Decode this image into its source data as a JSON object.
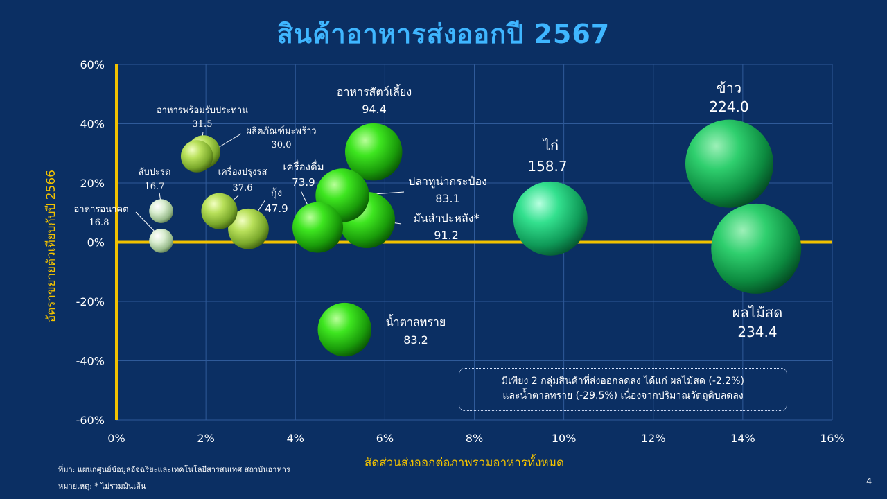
{
  "title": "สินค้าอาหารส่งออกปี 2567",
  "xlabel": "สัดส่วนส่งออกต่อภาพรวมอาหารทั้งหมด",
  "ylabel": "อัตราขยายตัวเทียบกับปี 2566",
  "source": "ที่มา: แผนกศูนย์ข้อมูลอัจฉริยะและเทคโนโลยีสารสนเทศ สถาบันอาหาร",
  "note": "หมายเหตุ: * ไม่รวมมันเส้น",
  "page_number": "4",
  "callout": {
    "line1": "มีเพียง 2 กลุ่มสินค้าที่ส่งออกลดลง ได้แก่ ผลไม้สด (-2.2%)",
    "line2": "และน้ำตาลทราย (-29.5%) เนื่องจากปริมาณวัตถุดิบลดลง"
  },
  "colors": {
    "background": "#0b2f63",
    "title": "#3fb6ff",
    "axis_highlight": "#f2c200",
    "grid": "#2f5a99"
  },
  "chart_data": {
    "type": "bubble",
    "xlim": [
      0,
      16
    ],
    "ylim": [
      -60,
      60
    ],
    "x_ticks": [
      "0%",
      "2%",
      "4%",
      "6%",
      "8%",
      "10%",
      "12%",
      "14%",
      "16%"
    ],
    "y_ticks": [
      "60%",
      "40%",
      "20%",
      "0%",
      "-20%",
      "-40%",
      "-60%"
    ],
    "grid": true,
    "points": [
      {
        "name": "ข้าว",
        "size_label": "224.0",
        "x": 13.7,
        "y": 26.5,
        "size": 224.0,
        "color": "green"
      },
      {
        "name": "ผลไม้สด",
        "size_label": "234.4",
        "x": 14.3,
        "y": -2.2,
        "size": 234.4,
        "color": "green"
      },
      {
        "name": "ไก่",
        "size_label": "158.7",
        "x": 9.7,
        "y": 8.0,
        "size": 158.7,
        "color": "teal"
      },
      {
        "name": "อาหารสัตว์เลี้ยง",
        "size_label": "94.4",
        "x": 5.75,
        "y": 30.5,
        "size": 94.4,
        "color": "lime"
      },
      {
        "name": "ปลาทูน่ากระป๋อง",
        "size_label": "83.1",
        "x": 5.05,
        "y": 15.8,
        "size": 83.1,
        "color": "lime"
      },
      {
        "name": "มันสำปะหลัง*",
        "size_label": "91.2",
        "x": 5.6,
        "y": 7.5,
        "size": 91.2,
        "color": "lime"
      },
      {
        "name": "เครื่องดื่ม",
        "size_label": "73.9",
        "x": 4.5,
        "y": 5.0,
        "size": 73.9,
        "color": "lime"
      },
      {
        "name": "น้ำตาลทราย",
        "size_label": "83.2",
        "x": 5.1,
        "y": -29.5,
        "size": 83.2,
        "color": "lime"
      },
      {
        "name": "กุ้ง",
        "size_label": "47.9",
        "x": 2.95,
        "y": 4.5,
        "size": 47.9,
        "color": "olive"
      },
      {
        "name": "เครื่องปรุงรส",
        "size_label": "37.6",
        "x": 2.3,
        "y": 10.5,
        "size": 37.6,
        "color": "olive"
      },
      {
        "name": "อาหารพร้อมรับประทาน",
        "size_label": "31.5",
        "x": 1.95,
        "y": 30.5,
        "size": 31.5,
        "color": "olive"
      },
      {
        "name": "ผลิตภัณฑ์มะพร้าว",
        "size_label": "30.0",
        "x": 1.8,
        "y": 29.0,
        "size": 30.0,
        "color": "olive"
      },
      {
        "name": "สับปะรด",
        "size_label": "16.7",
        "x": 1.0,
        "y": 10.5,
        "size": 16.7,
        "color": "pale"
      },
      {
        "name": "อาหารอนาคต",
        "size_label": "16.8",
        "x": 1.0,
        "y": 0.5,
        "size": 16.8,
        "color": "pale"
      }
    ]
  }
}
